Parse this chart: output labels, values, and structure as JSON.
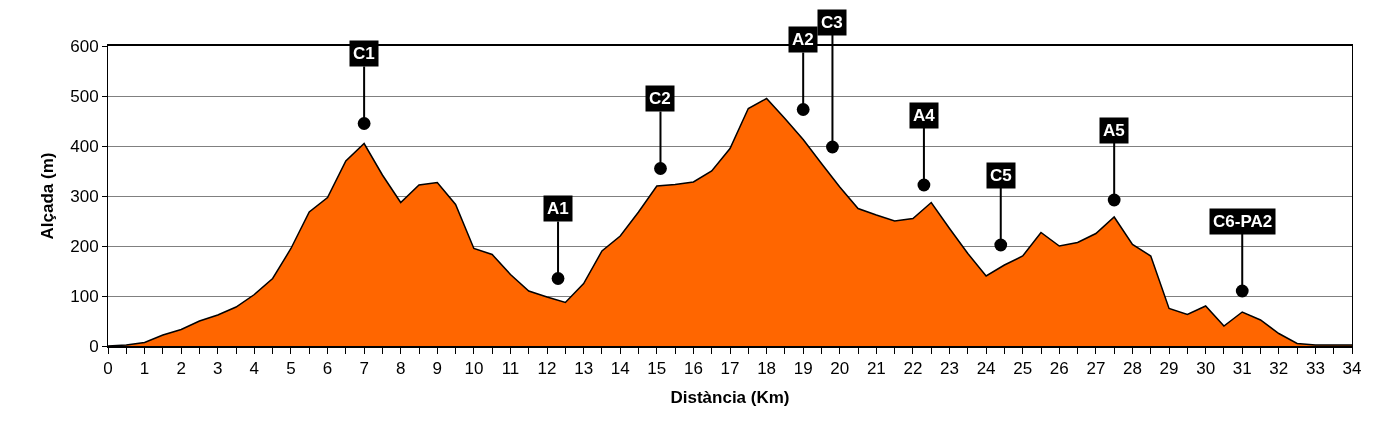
{
  "chart_data": {
    "type": "area",
    "xlabel": "Distància (Km)",
    "ylabel": "Alçada (m)",
    "x": [
      0,
      0.5,
      1,
      1.5,
      2,
      2.5,
      3,
      3.5,
      4,
      4.5,
      5,
      5.5,
      6,
      6.5,
      7,
      7.5,
      8,
      8.5,
      9,
      9.5,
      10,
      10.5,
      11,
      11.5,
      12,
      12.5,
      13,
      13.5,
      14,
      14.5,
      15,
      15.5,
      16,
      16.5,
      17,
      17.5,
      18,
      18.5,
      19,
      19.5,
      20,
      20.5,
      21,
      21.5,
      22,
      22.5,
      23,
      23.5,
      24,
      24.5,
      25,
      25.5,
      26,
      26.5,
      27,
      27.5,
      28,
      28.5,
      29,
      29.5,
      30,
      30.5,
      31,
      31.5,
      32,
      32.5,
      33,
      33.5,
      34
    ],
    "series": [
      {
        "color": "#ff6600",
        "values": [
          0,
          2,
          7,
          22,
          33,
          50,
          62,
          78,
          103,
          135,
          195,
          268,
          297,
          370,
          405,
          342,
          287,
          322,
          327,
          283,
          195,
          183,
          143,
          110,
          98,
          87,
          125,
          190,
          220,
          268,
          320,
          323,
          328,
          350,
          395,
          475,
          495,
          455,
          413,
          365,
          318,
          275,
          262,
          250,
          255,
          287,
          235,
          185,
          140,
          162,
          180,
          227,
          200,
          207,
          225,
          258,
          203,
          180,
          75,
          63,
          80,
          40,
          68,
          52,
          25,
          5,
          2,
          2,
          2
        ]
      }
    ],
    "xlim": [
      0,
      34
    ],
    "xticks": [
      0,
      1,
      2,
      3,
      4,
      5,
      6,
      7,
      8,
      9,
      10,
      11,
      12,
      13,
      14,
      15,
      16,
      17,
      18,
      19,
      20,
      21,
      22,
      23,
      24,
      25,
      26,
      27,
      28,
      29,
      30,
      31,
      32,
      33,
      34
    ],
    "ylim": [
      0,
      600
    ],
    "yticks": [
      0,
      100,
      200,
      300,
      400,
      500,
      600
    ],
    "grid": "y",
    "line_style": "solid",
    "marker": "none",
    "annotations": [
      {
        "text": "C1",
        "x": 7,
        "y": 445
      },
      {
        "text": "A1",
        "x": 12.3,
        "y": 135
      },
      {
        "text": "C2",
        "x": 15.1,
        "y": 355
      },
      {
        "text": "A2",
        "x": 19,
        "y": 473
      },
      {
        "text": "C3",
        "x": 19.8,
        "y": 398
      },
      {
        "text": "A4",
        "x": 22.3,
        "y": 322
      },
      {
        "text": "C5",
        "x": 24.4,
        "y": 202
      },
      {
        "text": "A5",
        "x": 27.5,
        "y": 292
      },
      {
        "text": "C6-PA2",
        "x": 31,
        "y": 110
      }
    ]
  }
}
